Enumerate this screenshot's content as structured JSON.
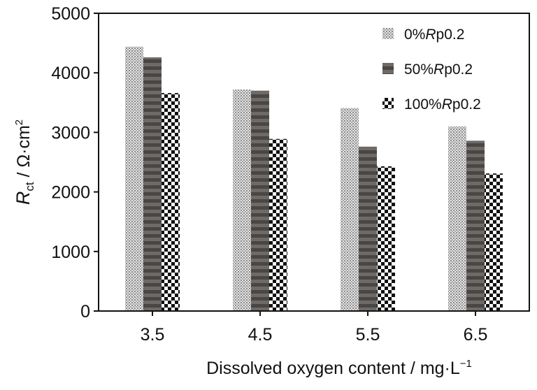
{
  "chart_data": {
    "type": "bar",
    "title": "",
    "ylabel": {
      "symbol": "R",
      "subscript": "ct",
      "unit": " / Ω·cm",
      "unit_sup": "2"
    },
    "xlabel": {
      "text": "Dissolved oxygen content / mg·L",
      "sup": "−1"
    },
    "categories": [
      "3.5",
      "4.5",
      "5.5",
      "6.5"
    ],
    "yticks": [
      "0",
      "1000",
      "2000",
      "3000",
      "4000",
      "5000"
    ],
    "ylim": [
      0,
      5000
    ],
    "grid": false,
    "legend_position": "top-right",
    "series": [
      {
        "name": "0%Rp0.2",
        "label_prefix": "0%",
        "label_italic": "R",
        "label_suffix": "p0.2",
        "pattern": "fine-dots",
        "values": [
          4440,
          3720,
          3410,
          3100
        ]
      },
      {
        "name": "50%Rp0.2",
        "label_prefix": "50%",
        "label_italic": "R",
        "label_suffix": "p0.2",
        "pattern": "dark-stripes",
        "values": [
          4260,
          3700,
          2760,
          2860
        ]
      },
      {
        "name": "100%Rp0.2",
        "label_prefix": "100%",
        "label_italic": "R",
        "label_suffix": "p0.2",
        "pattern": "checkerboard",
        "values": [
          3660,
          2890,
          2430,
          2310
        ]
      }
    ],
    "colors": {
      "fine_dots_bg": "#e4e4e4",
      "fine_dots_fg": "#8a8a8a",
      "stripes_light": "#6e6a68",
      "stripes_dark": "#4a4644",
      "checker_dark": "#111111",
      "checker_light": "#ffffff",
      "axis": "#111111"
    }
  }
}
